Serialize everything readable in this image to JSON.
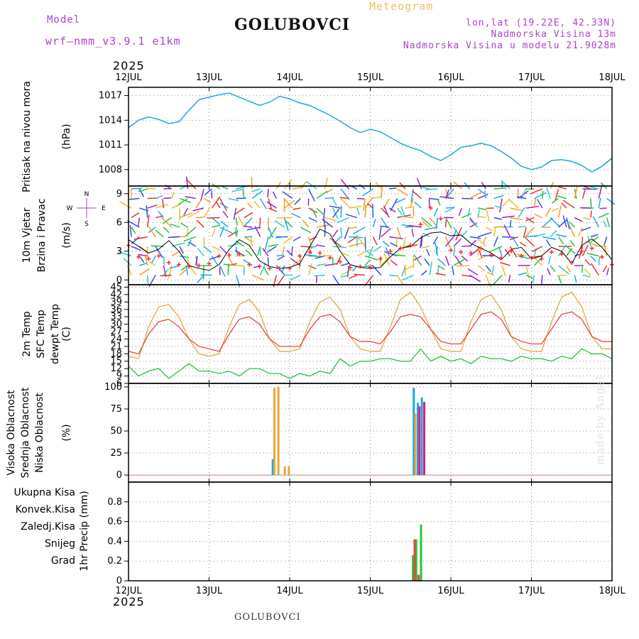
{
  "header": {
    "model_label": "Model",
    "model_name": "wrf—nmm_v3.9.1  e1km",
    "location": "GOLUBOVCI",
    "product": "Meteogram",
    "coords": "lon,lat (19.22E, 42.33N)",
    "elevation": "Nadmorska Visina 13m",
    "model_elevation": "Nadmorska Visina u modelu 21.9028m",
    "year_top": "2025",
    "year_bottom": "2025",
    "footer_location": "GOLUBOVCI",
    "watermark": "made by Angel"
  },
  "colors": {
    "pressure": "#1aa7e8",
    "wind_max": "#000000",
    "gust_marker": "#ff2a2a",
    "t2m": "#e84444",
    "sfc": "#e6a83a",
    "dewpt": "#22c43a",
    "cloud_high": "#1aa7e8",
    "cloud_mid": "#e6a83a",
    "cloud_low": "#e0207a",
    "precip_total": "#22c43a",
    "precip_conv": "#e84444",
    "precip_strat": "#f07830",
    "snow": "#4a4ae0",
    "hail": "#30c8c8",
    "dewpt_label": "#22c43a",
    "wind_label": "#22c43a",
    "wind_legend": "#b040d0"
  },
  "chart_data": [
    {
      "panel": "pressure",
      "type": "line",
      "ylabel_lines": [
        "Pritisak na nivou mora"
      ],
      "unit": "(hPa)",
      "x_ticks": [
        "12JUL",
        "13JUL",
        "14JUL",
        "15JUL",
        "16JUL",
        "17JUL",
        "18JUL"
      ],
      "ylim": [
        1006,
        1018
      ],
      "yticks": [
        1008,
        1011,
        1014,
        1017
      ],
      "grid": true,
      "series": [
        {
          "x": [
            0,
            0.125,
            0.25,
            0.375,
            0.5,
            0.625,
            0.75,
            0.875,
            1.0,
            1.125,
            1.25,
            1.375,
            1.5,
            1.625,
            1.75,
            1.875,
            2.0,
            2.125,
            2.25,
            2.375,
            2.5,
            2.625,
            2.75,
            2.875,
            3.0,
            3.125,
            3.25,
            3.375,
            3.5,
            3.625,
            3.75,
            3.875,
            4.0,
            4.125,
            4.25,
            4.375,
            4.5,
            4.625,
            4.75,
            4.875,
            5.0,
            5.125,
            5.25,
            5.375,
            5.5,
            5.625,
            5.75,
            5.875,
            6.0
          ],
          "values": [
            1013.1,
            1014.0,
            1014.4,
            1014.1,
            1013.6,
            1013.8,
            1015.2,
            1016.5,
            1016.8,
            1017.1,
            1017.3,
            1016.8,
            1016.3,
            1015.8,
            1016.2,
            1016.9,
            1016.6,
            1016.1,
            1015.8,
            1015.2,
            1014.6,
            1013.9,
            1013.1,
            1012.5,
            1012.9,
            1012.6,
            1011.9,
            1011.2,
            1010.7,
            1010.3,
            1009.6,
            1009.1,
            1009.8,
            1010.7,
            1010.9,
            1011.2,
            1010.9,
            1010.2,
            1009.4,
            1008.4,
            1008.0,
            1008.3,
            1009.1,
            1009.2,
            1009.0,
            1008.5,
            1007.7,
            1008.4,
            1009.4
          ]
        }
      ]
    },
    {
      "panel": "wind",
      "type": "line",
      "ylabel_lines": [
        "10m Vjetar",
        "Brzina i Pravac"
      ],
      "unit": "(m/s)",
      "legend_dirs": {
        "top": "N",
        "right": "E",
        "left": "W",
        "bottom": "S"
      },
      "ylim": [
        -0.5,
        9.8
      ],
      "yticks": [
        0,
        3,
        6,
        9
      ],
      "grid": true,
      "series": [
        {
          "name": "max",
          "x": [
            0,
            0.125,
            0.25,
            0.375,
            0.5,
            0.625,
            0.75,
            0.875,
            1.0,
            1.125,
            1.25,
            1.375,
            1.5,
            1.625,
            1.75,
            1.875,
            2.0,
            2.125,
            2.25,
            2.375,
            2.5,
            2.625,
            2.75,
            2.875,
            3.0,
            3.125,
            3.25,
            3.375,
            3.5,
            3.625,
            3.75,
            3.875,
            4.0,
            4.125,
            4.25,
            4.375,
            4.5,
            4.625,
            4.75,
            4.875,
            5.0,
            5.125,
            5.25,
            5.375,
            5.5,
            5.625,
            5.75,
            5.875,
            6.0
          ],
          "values": [
            4.2,
            3.5,
            2.8,
            3.2,
            4.1,
            3.0,
            1.5,
            1.2,
            1.0,
            1.6,
            3.2,
            4.2,
            3.6,
            2.0,
            1.4,
            1.2,
            1.3,
            1.7,
            3.5,
            5.3,
            4.8,
            3.0,
            1.6,
            1.3,
            1.2,
            1.3,
            2.4,
            3.3,
            3.5,
            4.4,
            4.9,
            5.0,
            4.6,
            4.7,
            3.8,
            3.3,
            2.8,
            2.1,
            3.2,
            3.4,
            2.2,
            2.5,
            3.4,
            3.0,
            1.7,
            3.6,
            4.3,
            3.4,
            2.1
          ]
        },
        {
          "name": "gust",
          "x": [
            0,
            0.125,
            0.25,
            0.375,
            0.5,
            0.625,
            0.75,
            0.875,
            1.0,
            1.125,
            1.25,
            1.375,
            1.5,
            1.625,
            1.75,
            1.875,
            2.0,
            2.125,
            2.25,
            2.375,
            2.5,
            2.625,
            2.75,
            2.875,
            3.0,
            3.125,
            3.25,
            3.375,
            3.5,
            3.625,
            3.75,
            3.875,
            4.0,
            4.125,
            4.25,
            4.375,
            4.5,
            4.625,
            4.75,
            4.875,
            5.0,
            5.125,
            5.25,
            5.375,
            5.5,
            5.625,
            5.75,
            5.875,
            6.0
          ],
          "values": [
            3.6,
            2.4,
            2.2,
            2.5,
            1.8,
            1.6,
            1.4,
            1.5,
            1.7,
            2.5,
            2.6,
            2.7,
            1.6,
            1.4,
            1.2,
            1.2,
            1.2,
            2.5,
            2.9,
            2.8,
            2.3,
            1.9,
            1.3,
            1.4,
            1.3,
            2.2,
            3.0,
            3.3,
            3.6,
            5.8,
            7.5,
            6.4,
            3.1,
            2.9,
            2.8,
            3.3,
            2.6,
            2.3,
            3.0,
            2.5,
            2.3,
            2.2,
            2.9,
            2.7,
            1.8,
            3.0,
            3.3,
            2.4,
            1.6
          ]
        }
      ]
    },
    {
      "panel": "temperature",
      "type": "line",
      "ylabel_lines": [
        "2m Temp",
        "SFC Temp",
        "dewpt Temp"
      ],
      "unit": "(C)",
      "ylim": [
        6,
        46
      ],
      "yticks": [
        6,
        9,
        12,
        15,
        18,
        21,
        24,
        27,
        30,
        33,
        36,
        39,
        42,
        45
      ],
      "grid": true,
      "series": [
        {
          "name": "2m Temp",
          "x": [
            0,
            0.125,
            0.25,
            0.375,
            0.5,
            0.625,
            0.75,
            0.875,
            1.0,
            1.125,
            1.25,
            1.375,
            1.5,
            1.625,
            1.75,
            1.875,
            2.0,
            2.125,
            2.25,
            2.375,
            2.5,
            2.625,
            2.75,
            2.875,
            3.0,
            3.125,
            3.25,
            3.375,
            3.5,
            3.625,
            3.75,
            3.875,
            4.0,
            4.125,
            4.25,
            4.375,
            4.5,
            4.625,
            4.75,
            4.875,
            5.0,
            5.125,
            5.25,
            5.375,
            5.5,
            5.625,
            5.75,
            5.875,
            6.0
          ],
          "values": [
            19,
            18,
            26,
            31,
            32,
            29,
            24,
            21,
            20,
            19,
            26,
            32,
            33,
            30,
            24,
            21,
            21,
            21,
            28,
            33,
            34,
            31,
            25,
            23,
            23,
            22,
            27,
            33,
            34,
            33,
            28,
            23,
            22,
            22,
            28,
            34,
            35,
            32,
            25,
            23,
            22,
            22,
            28,
            34,
            35,
            32,
            25,
            23,
            23
          ]
        },
        {
          "name": "SFC Temp",
          "x": [
            0,
            0.125,
            0.25,
            0.375,
            0.5,
            0.625,
            0.75,
            0.875,
            1.0,
            1.125,
            1.25,
            1.375,
            1.5,
            1.625,
            1.75,
            1.875,
            2.0,
            2.125,
            2.25,
            2.375,
            2.5,
            2.625,
            2.75,
            2.875,
            3.0,
            3.125,
            3.25,
            3.375,
            3.5,
            3.625,
            3.75,
            3.875,
            4.0,
            4.125,
            4.25,
            4.375,
            4.5,
            4.625,
            4.75,
            4.875,
            5.0,
            5.125,
            5.25,
            5.375,
            5.5,
            5.625,
            5.75,
            5.875,
            6.0
          ],
          "values": [
            17,
            16,
            29,
            37,
            38,
            33,
            24,
            18,
            17,
            18,
            29,
            38,
            40,
            35,
            24,
            19,
            19,
            20,
            31,
            39,
            41,
            36,
            25,
            20,
            19,
            19,
            29,
            40,
            43,
            37,
            28,
            20,
            19,
            19,
            31,
            40,
            42,
            36,
            25,
            20,
            19,
            19,
            31,
            41,
            43,
            37,
            25,
            20,
            20
          ]
        },
        {
          "name": "dewpt Temp",
          "x": [
            0,
            0.125,
            0.25,
            0.375,
            0.5,
            0.625,
            0.75,
            0.875,
            1.0,
            1.125,
            1.25,
            1.375,
            1.5,
            1.625,
            1.75,
            1.875,
            2.0,
            2.125,
            2.25,
            2.375,
            2.5,
            2.625,
            2.75,
            2.875,
            3.0,
            3.125,
            3.25,
            3.375,
            3.5,
            3.625,
            3.75,
            3.875,
            4.0,
            4.125,
            4.25,
            4.375,
            4.5,
            4.625,
            4.75,
            4.875,
            5.0,
            5.125,
            5.25,
            5.375,
            5.5,
            5.625,
            5.75,
            5.875,
            6.0
          ],
          "values": [
            13,
            9,
            11,
            12,
            8,
            11,
            14,
            11,
            11,
            10,
            11,
            9,
            12,
            12,
            10,
            10,
            8,
            10,
            9,
            11,
            10,
            16,
            13,
            15,
            15,
            16,
            16,
            15,
            15,
            20,
            15,
            17,
            15,
            16,
            14,
            17,
            16,
            16,
            15,
            17,
            16,
            16,
            15,
            17,
            16,
            20,
            18,
            18,
            16
          ]
        }
      ]
    },
    {
      "panel": "cloud",
      "type": "bar",
      "ylabel_lines": [
        "Visoka Oblacnost",
        "Srednja Oblacnost",
        "Niska Oblacnost"
      ],
      "unit": "(%)",
      "ylim": [
        -8,
        104
      ],
      "yticks": [
        0,
        25,
        50,
        75,
        100
      ],
      "grid": true,
      "series": [
        {
          "name": "Visoka Oblacnost",
          "x": [
            1.79,
            3.54,
            3.59,
            3.64
          ],
          "values": [
            18,
            99,
            82,
            88
          ]
        },
        {
          "name": "Srednja Oblacnost",
          "x": [
            1.81,
            1.86,
            1.94,
            1.99,
            3.56
          ],
          "values": [
            99,
            100,
            10,
            10,
            70
          ]
        },
        {
          "name": "Niska Oblacnost",
          "x": [
            3.61,
            3.67
          ],
          "values": [
            78,
            83
          ]
        }
      ]
    },
    {
      "panel": "precip",
      "type": "bar",
      "ylabel_lines": [
        "Ukupna Kisa",
        "Konvek.Kisa",
        "Zaledj.Kisa",
        "Snijeg",
        "Grad"
      ],
      "unit": "1hr Precip (mm)",
      "ylim": [
        0,
        1.0
      ],
      "yticks": [
        0,
        0.2,
        0.4,
        0.6,
        0.8
      ],
      "ytick_labels": [
        "0",
        "0.2",
        "0.4",
        "0.6",
        "0.8"
      ],
      "grid": true,
      "series": [
        {
          "name": "Ukupna Kisa",
          "x": [
            3.53,
            3.57,
            3.63
          ],
          "values": [
            0.26,
            0.42,
            0.57
          ]
        },
        {
          "name": "Konvek.Kisa",
          "x": [
            3.55,
            3.6
          ],
          "values": [
            0.42,
            0.06
          ]
        }
      ]
    }
  ]
}
